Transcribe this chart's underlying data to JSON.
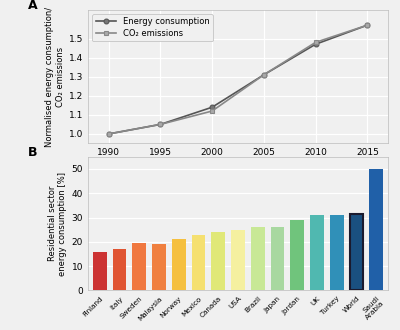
{
  "line_x": [
    1990,
    1995,
    2000,
    2005,
    2010,
    2015
  ],
  "energy_consumption": [
    1.0,
    1.05,
    1.14,
    1.31,
    1.47,
    1.57
  ],
  "co2_emissions": [
    1.0,
    1.05,
    1.12,
    1.31,
    1.48,
    1.57
  ],
  "line_ylabel": "Normalised energy consumption/\nCO₂ emissions",
  "line_ylim": [
    0.95,
    1.65
  ],
  "line_yticks": [
    1.0,
    1.1,
    1.2,
    1.3,
    1.4,
    1.5
  ],
  "legend_energy": "Energy consumption",
  "legend_co2": "CO₂ emissions",
  "bar_categories": [
    "Finland",
    "Italy",
    "Sweden",
    "Malaysia",
    "Norway",
    "Mexico",
    "Canada",
    "USA",
    "Brazil",
    "Japan",
    "Jordan",
    "UK",
    "Turkey",
    "World",
    "Saudi\nArabia"
  ],
  "bar_values": [
    16,
    17,
    19.5,
    19.2,
    21,
    23,
    24,
    25,
    26,
    26,
    29,
    31,
    31,
    31.5,
    50
  ],
  "bar_colors": [
    "#cc3333",
    "#e05533",
    "#f07840",
    "#f08040",
    "#f5c040",
    "#f5e070",
    "#e0e878",
    "#f5f0a0",
    "#c8e896",
    "#a8d8a0",
    "#70c47c",
    "#50b8b0",
    "#3090b8",
    "#1a5080",
    "#2060a8"
  ],
  "bar_ylabel": "Residential sector\nenergy consumption [%]",
  "bar_ylim": [
    0,
    55
  ],
  "bar_yticks": [
    0,
    10,
    20,
    30,
    40,
    50
  ],
  "world_idx": 13,
  "world_edgecolor": "#1a1a2e",
  "background_color": "#f0f0f0",
  "grid_color": "#ffffff",
  "line_color1": "#555555",
  "line_color2": "#888888",
  "label_A": "A",
  "label_B": "B"
}
